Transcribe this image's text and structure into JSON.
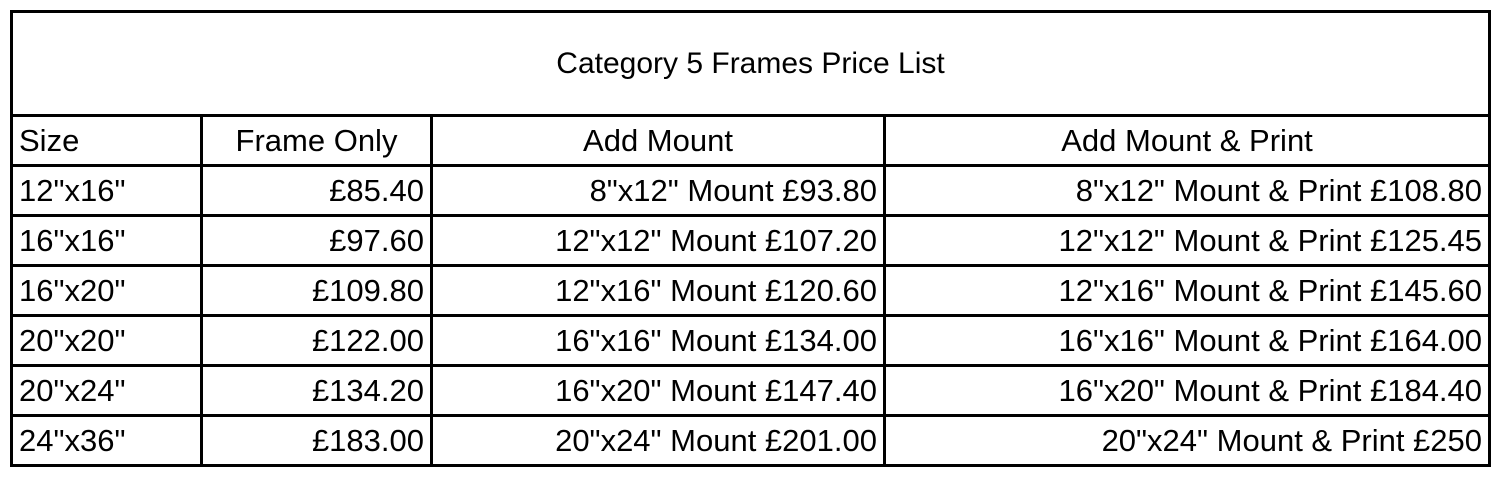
{
  "title": "Category 5 Frames Price List",
  "headers": [
    "Size",
    "Frame Only",
    "Add Mount",
    "Add Mount & Print"
  ],
  "rows": [
    [
      "12\"x16\"",
      "£85.40",
      "8\"x12\" Mount £93.80",
      "8\"x12\" Mount & Print £108.80"
    ],
    [
      "16\"x16\"",
      "£97.60",
      "12\"x12\" Mount £107.20",
      "12\"x12\" Mount & Print £125.45"
    ],
    [
      "16\"x20\"",
      "£109.80",
      "12\"x16\" Mount £120.60",
      "12\"x16\" Mount & Print £145.60"
    ],
    [
      "20\"x20\"",
      "£122.00",
      "16\"x16\" Mount £134.00",
      "16\"x16\" Mount & Print £164.00"
    ],
    [
      "20\"x24\"",
      "£134.20",
      "16\"x20\" Mount £147.40",
      "16\"x20\" Mount & Print £184.40"
    ],
    [
      "24\"x36\"",
      "£183.00",
      "20\"x24\" Mount £201.00",
      "20\"x24\" Mount & Print £250"
    ]
  ]
}
